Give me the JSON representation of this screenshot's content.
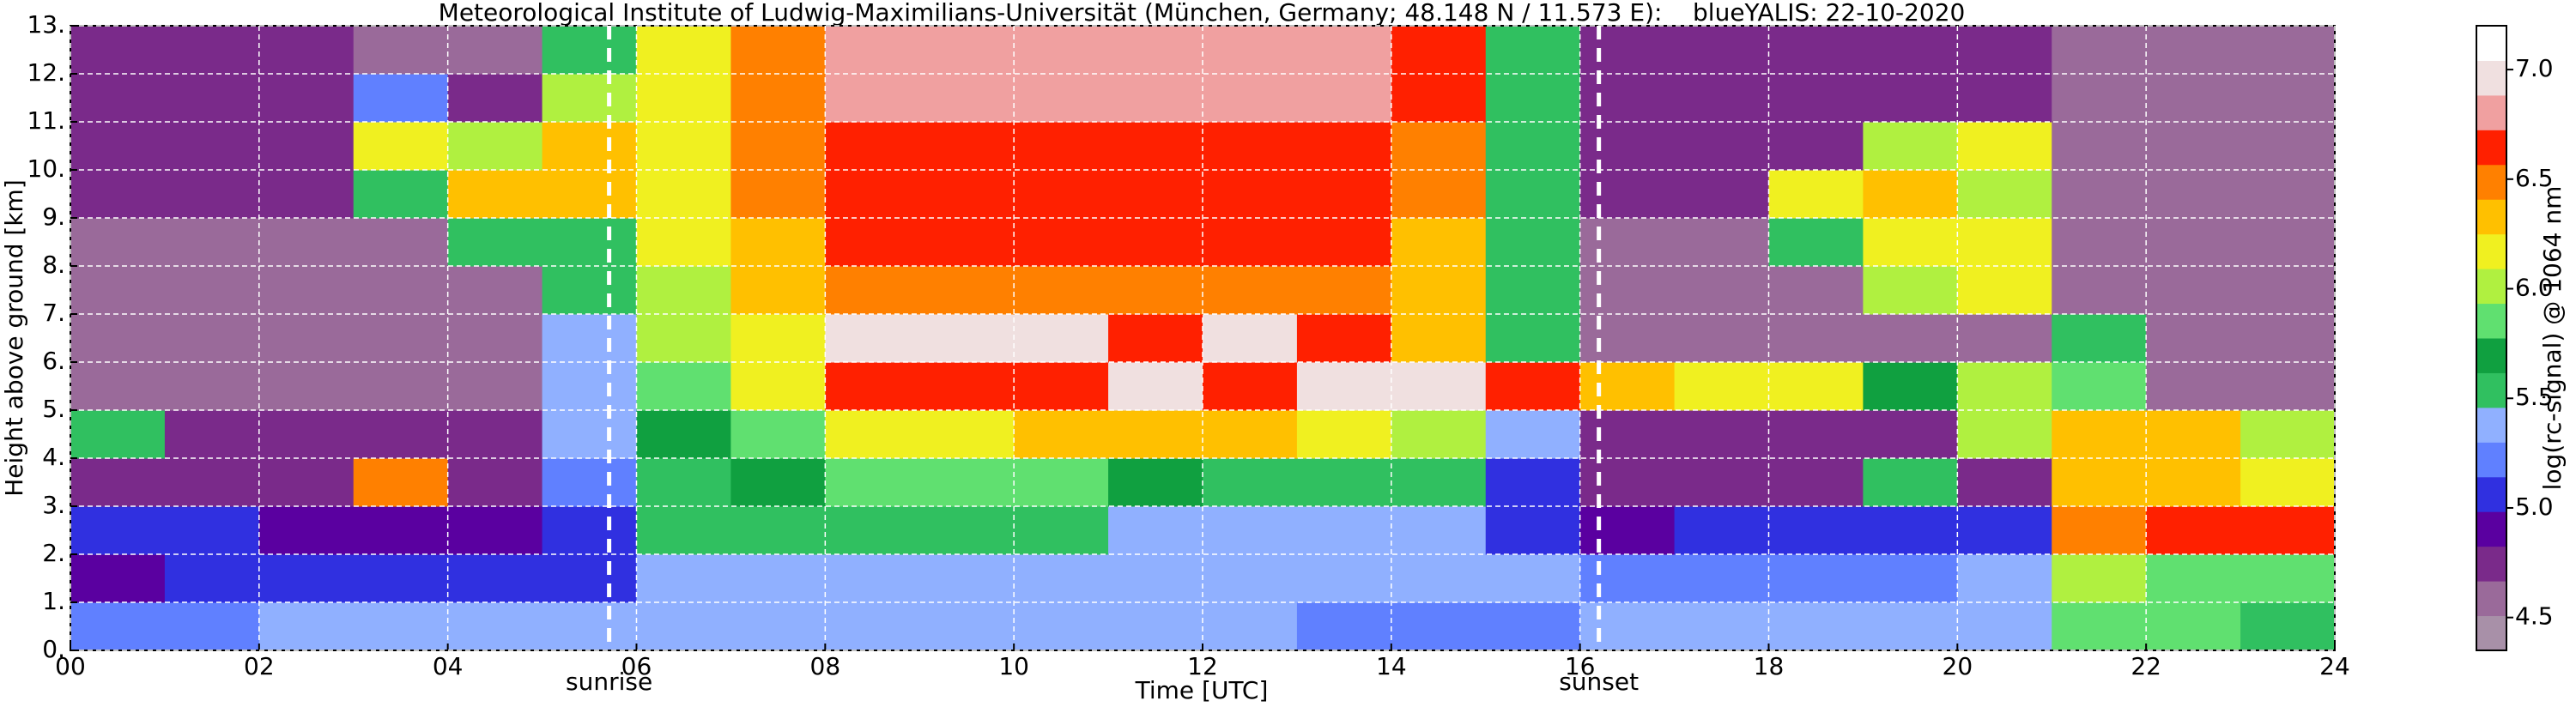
{
  "chart_data": {
    "type": "heatmap",
    "title": "Meteorological Institute of Ludwig-Maximilians-Universität (München, Germany; 48.148 N / 11.573 E):    blueYALIS: 22-10-2020",
    "xlabel": "Time [UTC]",
    "ylabel": "Height above ground [km]",
    "colorbar_label": "log(rc-signal) @ 1064 nm",
    "xlim": [
      0,
      24
    ],
    "xticks": [
      {
        "value": 0,
        "label": "00"
      },
      {
        "value": 2,
        "label": "02"
      },
      {
        "value": 4,
        "label": "04"
      },
      {
        "value": 6,
        "label": "06"
      },
      {
        "value": 8,
        "label": "08"
      },
      {
        "value": 10,
        "label": "10"
      },
      {
        "value": 12,
        "label": "12"
      },
      {
        "value": 14,
        "label": "14"
      },
      {
        "value": 16,
        "label": "16"
      },
      {
        "value": 18,
        "label": "18"
      },
      {
        "value": 20,
        "label": "20"
      },
      {
        "value": 22,
        "label": "22"
      },
      {
        "value": 24,
        "label": "24"
      }
    ],
    "ylim": [
      0,
      13
    ],
    "yticks": [
      {
        "value": 0,
        "label": "0."
      },
      {
        "value": 1,
        "label": "1."
      },
      {
        "value": 2,
        "label": "2."
      },
      {
        "value": 3,
        "label": "3."
      },
      {
        "value": 4,
        "label": "4."
      },
      {
        "value": 5,
        "label": "5."
      },
      {
        "value": 6,
        "label": "6."
      },
      {
        "value": 7,
        "label": "7."
      },
      {
        "value": 8,
        "label": "8."
      },
      {
        "value": 9,
        "label": "9."
      },
      {
        "value": 10,
        "label": "10."
      },
      {
        "value": 11,
        "label": "11."
      },
      {
        "value": 12,
        "label": "12."
      },
      {
        "value": 13,
        "label": "13."
      }
    ],
    "clim": [
      4.35,
      7.2
    ],
    "cticks": [
      4.5,
      {
        "value": 5,
        "label": "5.0"
      },
      5.5,
      {
        "value": 6,
        "label": "6.0"
      },
      6.5,
      {
        "value": 7,
        "label": "7.0"
      }
    ],
    "colors": [
      "#a890a8",
      "#9a6a9a",
      "#7a2a8a",
      "#5a00a0",
      "#3030e0",
      "#6080ff",
      "#90b0ff",
      "#30c060",
      "#10a040",
      "#60e070",
      "#b0f040",
      "#f0f020",
      "#ffc000",
      "#ff8000",
      "#ff2000",
      "#f0a0a0",
      "#f0e0e0",
      "#ffffff"
    ],
    "grid": true,
    "annotations": [
      {
        "x": 5.71,
        "text": "sunrise"
      },
      {
        "x": 16.2,
        "text": "sunset"
      }
    ],
    "z": [
      [
        5.2,
        5.2,
        5.3,
        5.4,
        5.4,
        5.4,
        5.4,
        5.4,
        5.4,
        5.4,
        5.4,
        5.4,
        5.3,
        5.2,
        5.2,
        5.2,
        5.3,
        5.4,
        5.4,
        5.4,
        5.3,
        5.8,
        5.8,
        5.6
      ],
      [
        4.9,
        5.0,
        5.1,
        5.1,
        5.1,
        5.1,
        5.3,
        5.3,
        5.3,
        5.3,
        5.3,
        5.3,
        5.3,
        5.3,
        5.3,
        5.3,
        5.2,
        5.2,
        5.2,
        5.2,
        5.3,
        6.0,
        5.9,
        5.8
      ],
      [
        5.0,
        5.0,
        4.9,
        4.9,
        4.9,
        5.1,
        5.5,
        5.5,
        5.5,
        5.5,
        5.5,
        5.4,
        5.4,
        5.3,
        5.3,
        5.1,
        4.9,
        5.0,
        5.0,
        5.0,
        5.0,
        6.5,
        6.6,
        6.6
      ],
      [
        4.8,
        4.8,
        4.8,
        6.5,
        4.8,
        5.2,
        5.6,
        5.7,
        5.8,
        5.8,
        5.8,
        5.7,
        5.6,
        5.5,
        5.5,
        5.1,
        4.8,
        4.8,
        4.8,
        5.6,
        4.8,
        6.3,
        6.3,
        6.1
      ],
      [
        5.6,
        4.7,
        4.7,
        4.7,
        4.7,
        5.3,
        5.7,
        5.8,
        6.1,
        6.2,
        6.3,
        6.3,
        6.3,
        6.2,
        6.0,
        5.3,
        4.7,
        4.7,
        4.7,
        4.7,
        6.0,
        6.4,
        6.3,
        6.0
      ],
      [
        4.6,
        4.6,
        4.6,
        4.6,
        4.6,
        5.4,
        5.9,
        6.1,
        6.6,
        6.6,
        6.7,
        7.0,
        6.6,
        7.0,
        6.9,
        6.6,
        6.4,
        6.2,
        6.2,
        5.7,
        6.0,
        5.8,
        4.6,
        4.6
      ],
      [
        4.6,
        4.6,
        4.6,
        4.6,
        4.6,
        5.4,
        6.0,
        6.2,
        7.0,
        6.9,
        6.9,
        6.6,
        7.0,
        6.6,
        6.4,
        5.5,
        4.6,
        4.6,
        4.6,
        4.6,
        4.6,
        5.5,
        4.6,
        4.6
      ],
      [
        4.6,
        4.6,
        4.6,
        4.6,
        4.6,
        5.5,
        6.0,
        6.3,
        6.5,
        6.5,
        6.5,
        6.5,
        6.5,
        6.5,
        6.3,
        5.5,
        4.6,
        4.6,
        4.6,
        6.0,
        6.1,
        4.6,
        4.6,
        4.6
      ],
      [
        4.6,
        4.6,
        4.6,
        4.6,
        5.5,
        5.6,
        6.1,
        6.4,
        6.6,
        6.6,
        6.6,
        6.6,
        6.6,
        6.6,
        6.4,
        5.6,
        4.6,
        4.6,
        5.6,
        6.2,
        6.2,
        4.6,
        4.6,
        4.6
      ],
      [
        4.7,
        4.7,
        4.7,
        5.6,
        6.3,
        6.4,
        6.2,
        6.5,
        6.7,
        6.7,
        6.7,
        6.7,
        6.7,
        6.7,
        6.5,
        5.6,
        4.7,
        4.7,
        6.2,
        6.3,
        6.0,
        4.6,
        4.6,
        4.6
      ],
      [
        4.7,
        4.7,
        4.7,
        6.2,
        6.0,
        6.3,
        6.2,
        6.5,
        6.7,
        6.7,
        6.7,
        6.7,
        6.7,
        6.7,
        6.5,
        5.6,
        4.7,
        4.7,
        4.7,
        6.0,
        6.1,
        4.6,
        4.6,
        4.6
      ],
      [
        4.7,
        4.7,
        4.7,
        5.2,
        4.7,
        6.0,
        6.2,
        6.5,
        6.8,
        6.8,
        6.8,
        6.8,
        6.8,
        6.8,
        6.6,
        5.6,
        4.7,
        4.7,
        4.7,
        4.7,
        4.7,
        4.6,
        4.6,
        4.6
      ],
      [
        4.7,
        4.7,
        4.7,
        4.6,
        4.6,
        5.6,
        6.2,
        6.5,
        6.8,
        6.8,
        6.8,
        6.8,
        6.8,
        6.8,
        6.6,
        5.6,
        4.7,
        4.7,
        4.7,
        4.7,
        4.7,
        4.6,
        4.6,
        4.6
      ]
    ]
  }
}
